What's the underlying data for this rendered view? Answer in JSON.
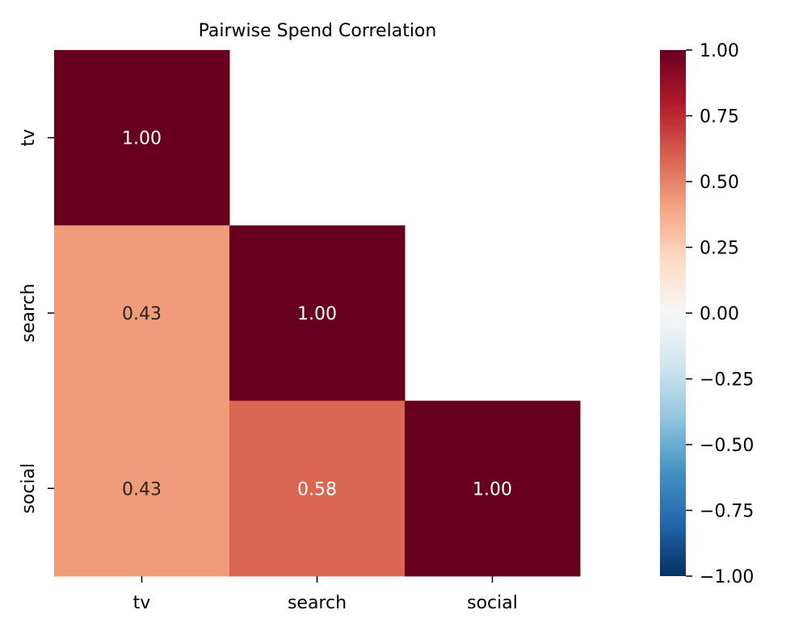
{
  "chart_data": {
    "type": "heatmap",
    "title": "Pairwise Spend Correlation",
    "xlabel": "",
    "ylabel": "",
    "x_categories": [
      "tv",
      "search",
      "social"
    ],
    "y_categories": [
      "tv",
      "search",
      "social"
    ],
    "mask": "upper-triangle",
    "values": [
      [
        1.0,
        null,
        null
      ],
      [
        0.43,
        1.0,
        null
      ],
      [
        0.43,
        0.58,
        1.0
      ]
    ],
    "value_labels": [
      [
        "1.00",
        null,
        null
      ],
      [
        "0.43",
        "1.00",
        null
      ],
      [
        "0.43",
        "0.58",
        "1.00"
      ]
    ],
    "colormap": "RdBu_r",
    "vmin": -1,
    "vmax": 1,
    "colorbar_ticks": [
      "1.00",
      "0.75",
      "0.50",
      "0.25",
      "0.00",
      "−0.25",
      "−0.50",
      "−0.75",
      "−1.00"
    ],
    "colorbar_tick_values": [
      1,
      0.75,
      0.5,
      0.25,
      0,
      -0.25,
      -0.5,
      -0.75,
      -1
    ]
  }
}
